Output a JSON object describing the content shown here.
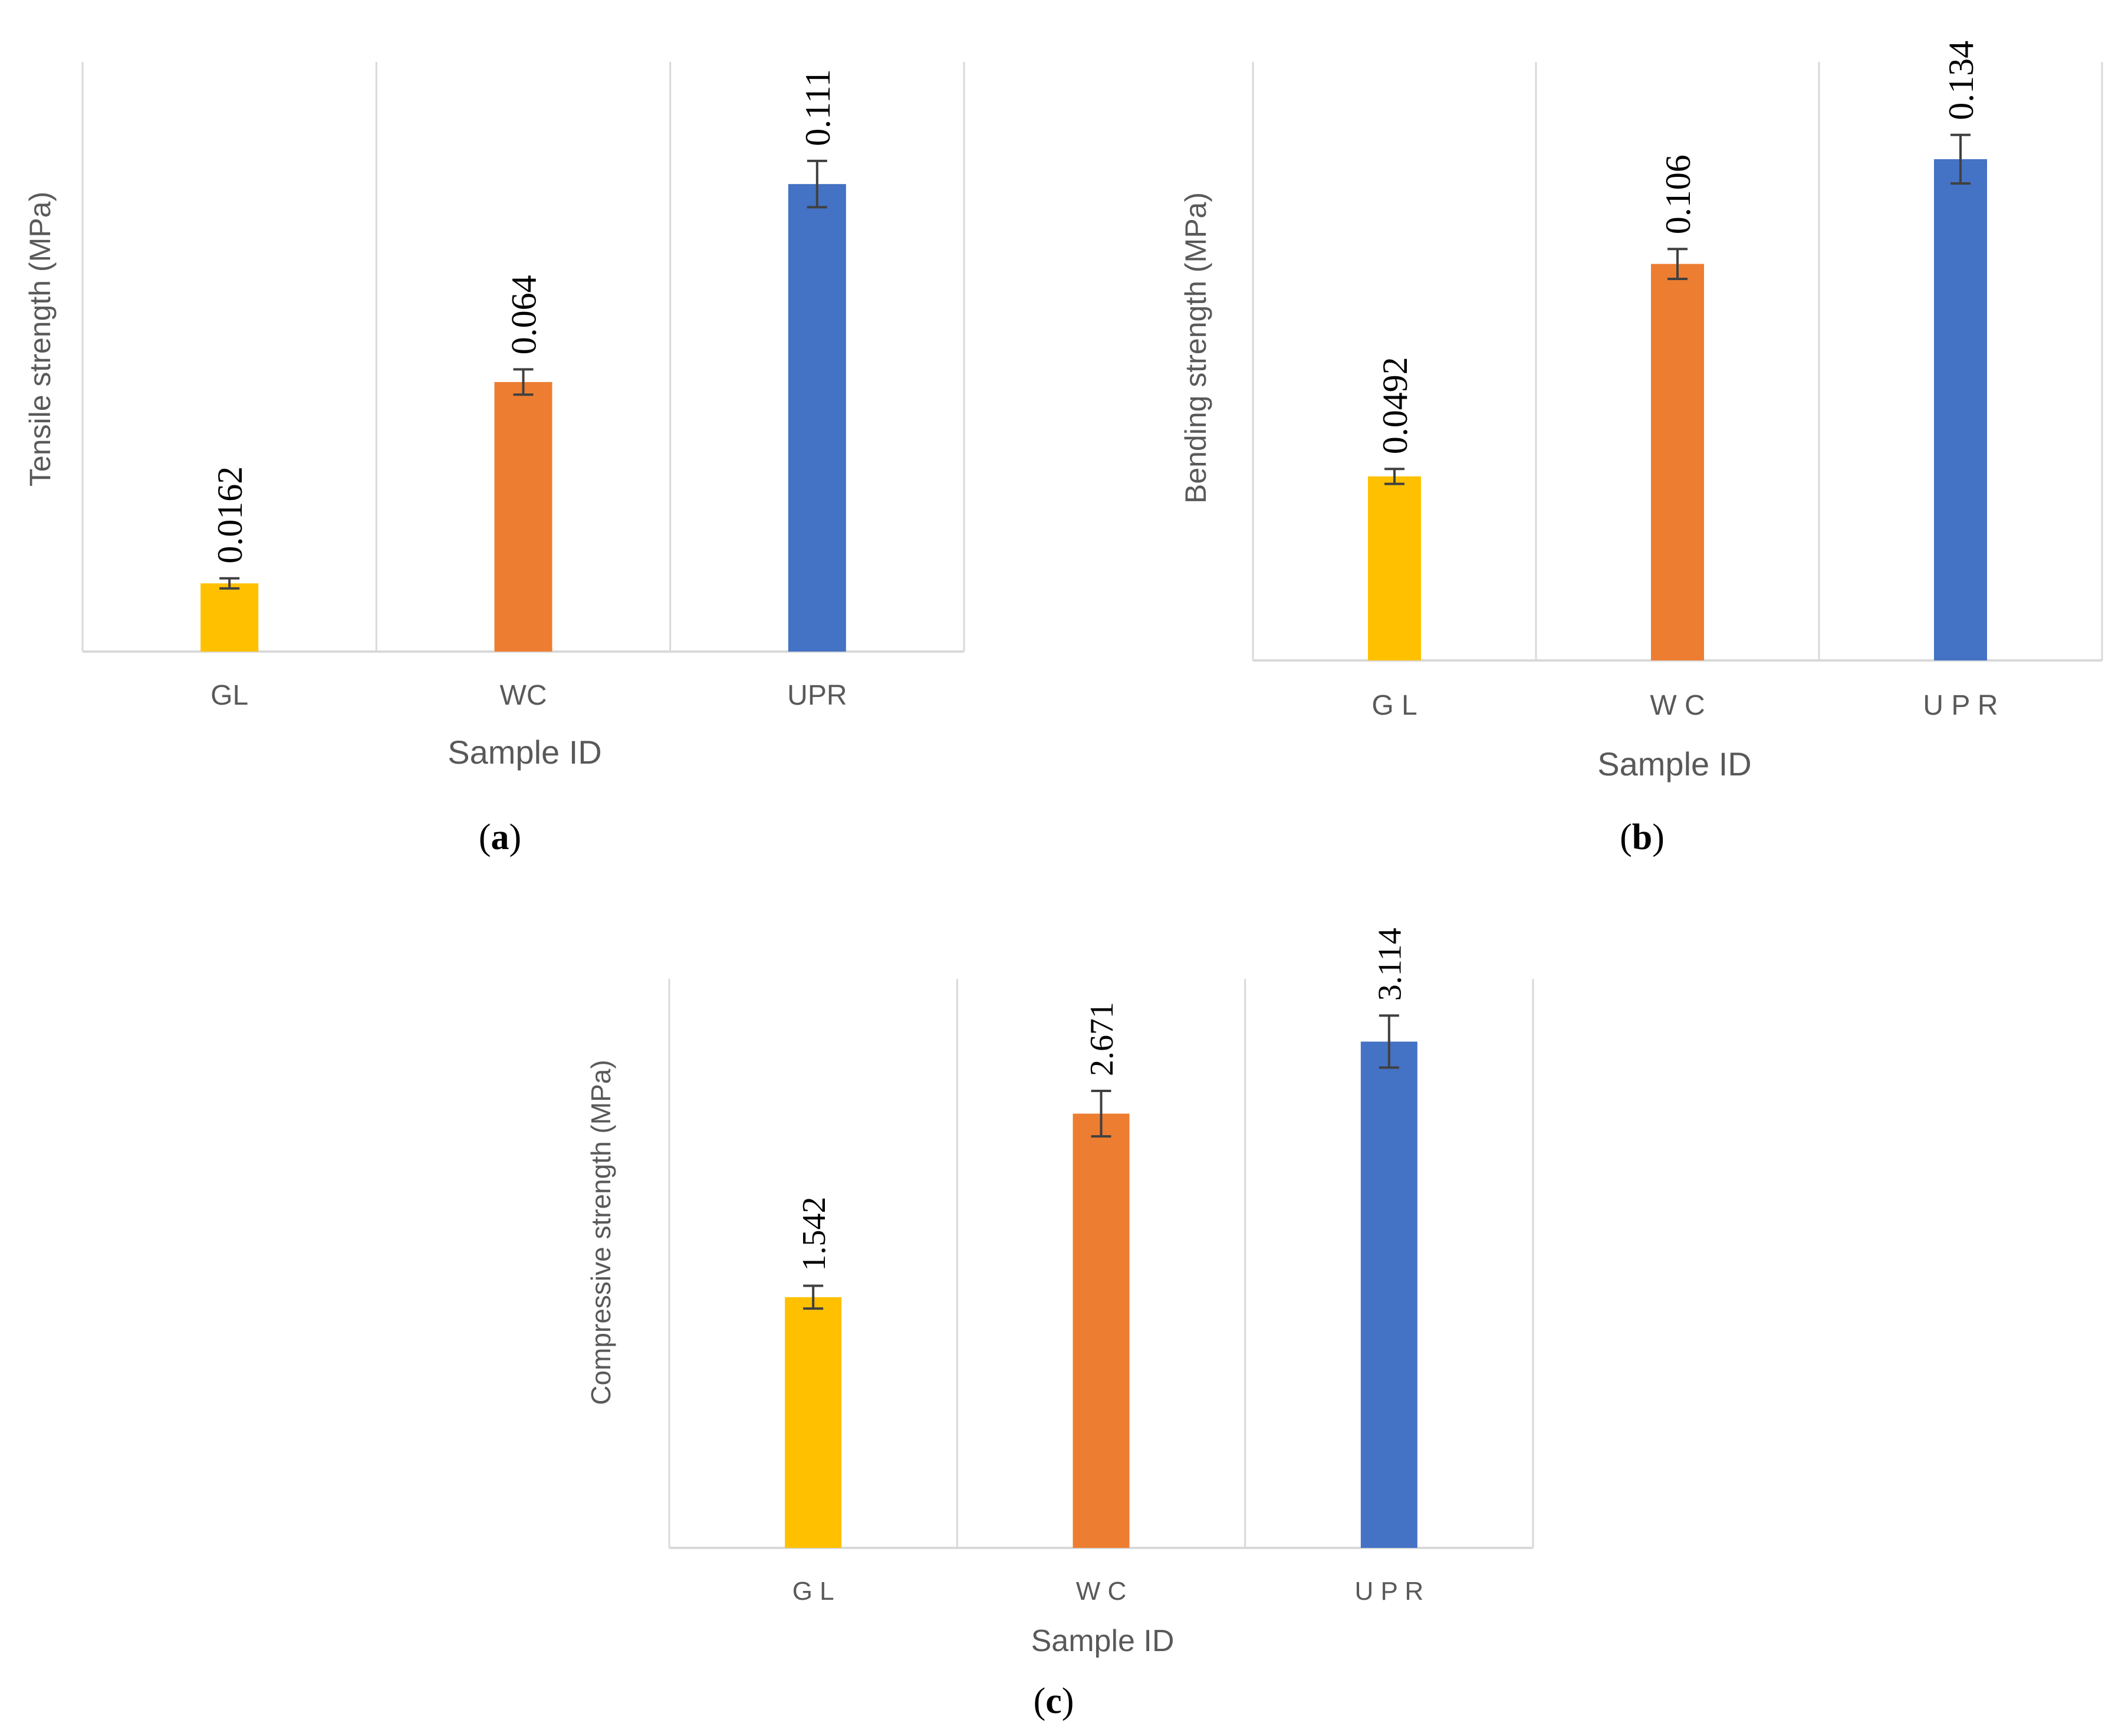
{
  "charts": [
    {
      "id": "a",
      "panel_label_letter": "a",
      "chart_data": {
        "type": "bar",
        "categories": [
          "GL",
          "WC",
          "UPR"
        ],
        "values": [
          0.0162,
          0.064,
          0.111
        ],
        "error": [
          0.0012,
          0.003,
          0.0055
        ],
        "data_labels": [
          "0.0162",
          "0.064",
          "0.111"
        ],
        "ylim": [
          0,
          0.14
        ],
        "title": "",
        "xlabel": "Sample ID",
        "ylabel": "Tensile strength (MPa)",
        "colors": [
          "#FFC000",
          "#ED7D31",
          "#4472C4"
        ],
        "grid": "vertical separators"
      }
    },
    {
      "id": "b",
      "panel_label_letter": "b",
      "chart_data": {
        "type": "bar",
        "categories": [
          "G L",
          "W C",
          "U P R"
        ],
        "values": [
          0.0492,
          0.106,
          0.134
        ],
        "error": [
          0.002,
          0.004,
          0.0065
        ],
        "data_labels": [
          "0.0492",
          "0.106",
          "0.134"
        ],
        "ylim": [
          0,
          0.16
        ],
        "title": "",
        "xlabel": "Sample ID",
        "ylabel": "Bending strength (MPa)",
        "colors": [
          "#FFC000",
          "#ED7D31",
          "#4472C4"
        ],
        "grid": "vertical separators"
      }
    },
    {
      "id": "c",
      "panel_label_letter": "c",
      "chart_data": {
        "type": "bar",
        "categories": [
          "G L",
          "W C",
          "U P R"
        ],
        "values": [
          1.542,
          2.671,
          3.114
        ],
        "error": [
          0.07,
          0.14,
          0.16
        ],
        "data_labels": [
          "1.542",
          "2.671",
          "3.114"
        ],
        "ylim": [
          0,
          3.5
        ],
        "title": "",
        "xlabel": "Sample ID",
        "ylabel": "Compressive strength (MPa)",
        "colors": [
          "#FFC000",
          "#ED7D31",
          "#4472C4"
        ],
        "grid": "vertical separators"
      }
    }
  ]
}
